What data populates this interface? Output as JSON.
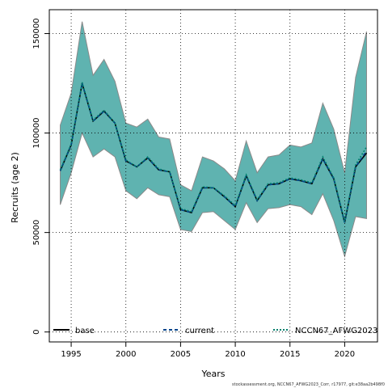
{
  "chart_data": {
    "type": "line",
    "title": "",
    "xlabel": "Years",
    "ylabel": "Recruits (age 2)",
    "xlim": [
      1993,
      2023
    ],
    "ylim": [
      -5000,
      162000
    ],
    "x_ticks": [
      1995,
      2000,
      2005,
      2010,
      2015,
      2020
    ],
    "y_ticks": [
      0,
      50000,
      100000,
      150000
    ],
    "x_tick_labels": [
      "1995",
      "2000",
      "2005",
      "2010",
      "2015",
      "2020"
    ],
    "y_tick_labels": [
      "0",
      "50000",
      "100000",
      "150000"
    ],
    "grid": true,
    "legend_position": "bottom",
    "years": [
      1994,
      1995,
      1996,
      1997,
      1998,
      1999,
      2000,
      2001,
      2002,
      2003,
      2004,
      2005,
      2006,
      2007,
      2008,
      2009,
      2010,
      2011,
      2012,
      2013,
      2014,
      2015,
      2016,
      2017,
      2018,
      2019,
      2020,
      2021,
      2022
    ],
    "series": [
      {
        "name": "base",
        "color": "#000000",
        "dash": "solid",
        "values": [
          81000,
          94000,
          125000,
          106000,
          111000,
          105000,
          86000,
          83000,
          87500,
          81500,
          80500,
          61500,
          60000,
          72500,
          72500,
          68000,
          63000,
          78500,
          66000,
          74000,
          74500,
          77000,
          76000,
          74500,
          87000,
          77000,
          55000,
          83000,
          90000
        ]
      },
      {
        "name": "current",
        "color": "#00448c",
        "dash": "dashed",
        "values": [
          81000,
          94000,
          125000,
          106000,
          111000,
          105000,
          86000,
          83000,
          87500,
          81500,
          80500,
          61500,
          60000,
          72500,
          72500,
          68000,
          63000,
          78500,
          66000,
          74000,
          74500,
          77000,
          76000,
          74500,
          87000,
          77000,
          55000,
          83000,
          91000
        ]
      },
      {
        "name": "NCCN67_AFWG2023",
        "color": "#00806e",
        "dash": "dotted",
        "values": [
          81500,
          94500,
          125500,
          106500,
          111500,
          105000,
          86500,
          83000,
          88000,
          82000,
          80500,
          62000,
          60500,
          73000,
          72500,
          68500,
          63500,
          79000,
          66500,
          74500,
          75000,
          77500,
          76500,
          75000,
          88000,
          77500,
          55500,
          84000,
          93000
        ]
      }
    ],
    "confidence_band": {
      "color": "#5fb3b0",
      "upper": [
        104000,
        120000,
        156000,
        129000,
        137000,
        126000,
        105000,
        103000,
        107000,
        98000,
        97000,
        74000,
        71000,
        88000,
        86000,
        82000,
        76000,
        96000,
        80000,
        88000,
        89000,
        94000,
        93000,
        95000,
        115000,
        102000,
        80000,
        128000,
        151000
      ],
      "lower": [
        64000,
        80000,
        100000,
        88000,
        92000,
        88000,
        71000,
        67000,
        72500,
        69000,
        68000,
        51500,
        50500,
        60000,
        60500,
        56000,
        51500,
        65000,
        55000,
        62000,
        62500,
        64000,
        63000,
        59000,
        69500,
        56000,
        38000,
        58000,
        57000
      ]
    }
  },
  "footer_note": "stockassessment.org, NCCN67_AFWG2023_Corr, r17977, git:e38aa2b498f0"
}
